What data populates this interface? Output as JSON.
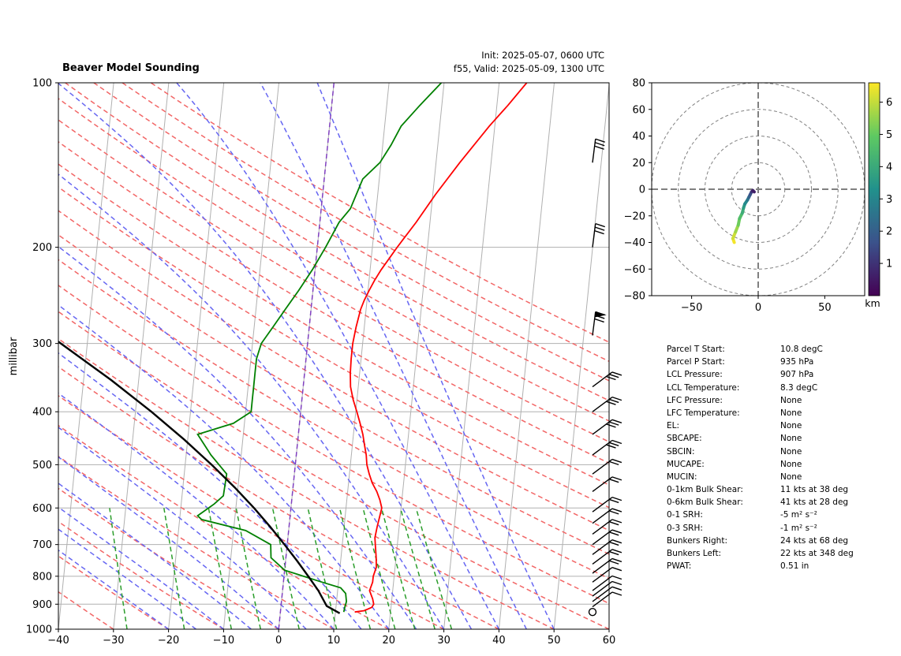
{
  "header": {
    "title": "Beaver Model Sounding",
    "init": "Init: 2025-05-07, 0600 UTC",
    "valid": "f55, Valid: 2025-05-09, 1300 UTC"
  },
  "chart_data": [
    {
      "type": "line",
      "subtype": "skew-T log-P diagram",
      "ylabel": "millibar",
      "xlim": [
        -40,
        60
      ],
      "ylim": [
        1000,
        100
      ],
      "xticks": [
        "−40",
        "−30",
        "−20",
        "−10",
        "0",
        "10",
        "20",
        "30",
        "40",
        "50",
        "60"
      ],
      "yticks": [
        "100",
        "200",
        "300",
        "400",
        "500",
        "600",
        "700",
        "800",
        "900",
        "1000"
      ],
      "yscale": "log",
      "grid": true,
      "series": [
        {
          "role": "temperature",
          "color": "#ff0000",
          "p": [
            930,
            925,
            912,
            900,
            880,
            850,
            820,
            800,
            770,
            740,
            700,
            680,
            650,
            620,
            600,
            580,
            560,
            540,
            520,
            500,
            480,
            460,
            440,
            420,
            400,
            380,
            360,
            340,
            320,
            300,
            280,
            260,
            250,
            240,
            230,
            220,
            200,
            180,
            160,
            140,
            120,
            110,
            100
          ],
          "t": [
            13.5,
            15.2,
            16.5,
            16.8,
            16.5,
            15.8,
            16.2,
            16.2,
            16.6,
            16.4,
            16.0,
            15.8,
            16.0,
            16.3,
            16.5,
            16.0,
            15.3,
            14.3,
            13.6,
            13.0,
            12.7,
            12.2,
            11.7,
            11.0,
            10.2,
            9.3,
            8.6,
            8.3,
            8.2,
            8.2,
            8.5,
            9.0,
            9.5,
            10.2,
            11.0,
            12.0,
            14.5,
            17.5,
            20.5,
            24.3,
            29.0,
            32.0,
            35.0
          ]
        },
        {
          "role": "dewpoint",
          "color": "#008000",
          "p": [
            930,
            912,
            890,
            860,
            840,
            820,
            780,
            740,
            700,
            660,
            630,
            620,
            590,
            570,
            520,
            480,
            440,
            420,
            400,
            380,
            360,
            340,
            320,
            300,
            280,
            260,
            240,
            220,
            200,
            180,
            170,
            150,
            140,
            130,
            120,
            110,
            100
          ],
          "td": [
            11.5,
            11.6,
            11.8,
            11.5,
            10.5,
            7.0,
            0.0,
            -2.7,
            -3.0,
            -7.8,
            -16.0,
            -16.8,
            -14.0,
            -12.5,
            -12.3,
            -15.5,
            -18.3,
            -12.0,
            -9.0,
            -9.0,
            -9.0,
            -9.0,
            -9.0,
            -8.4,
            -6.6,
            -4.7,
            -2.6,
            -0.5,
            1.5,
            3.5,
            5.3,
            7.0,
            9.8,
            11.5,
            13.0,
            16.0,
            19.5
          ]
        },
        {
          "role": "parcel profile",
          "color": "#000000",
          "p": [
            935,
            907,
            850,
            800,
            750,
            700,
            650,
            600,
            550,
            500,
            450,
            400,
            350,
            300,
            250,
            220,
            200,
            180,
            160,
            140,
            120,
            110,
            100
          ],
          "t": [
            10.8,
            8.3,
            6.5,
            4.4,
            2.1,
            -0.5,
            -3.4,
            -6.7,
            -10.6,
            -15.2,
            -20.6,
            -27.1,
            -35.0,
            -44.8,
            -56.5,
            -64.0,
            -69.5,
            -75.5,
            -82.0,
            -89.3,
            -97.5,
            -102.0,
            -107.0
          ]
        }
      ],
      "barb_pressures": [
        930,
        910,
        890,
        870,
        850,
        820,
        790,
        760,
        730,
        700,
        670,
        640,
        610,
        560,
        520,
        480,
        440,
        400,
        360,
        290,
        200,
        140
      ],
      "barb_labels": [
        "calm"
      ]
    },
    {
      "type": "line",
      "subtype": "hodograph",
      "xlim": [
        -80,
        80
      ],
      "ylim": [
        -80,
        80
      ],
      "xticks": [
        "−50",
        "0",
        "50"
      ],
      "yticks": [
        "80",
        "60",
        "40",
        "20",
        "0",
        "−20",
        "−40",
        "−60",
        "−80"
      ],
      "rings": [
        20,
        40,
        60,
        80
      ],
      "u": [
        -18,
        -19,
        -17,
        -15,
        -14,
        -12,
        -11,
        -10,
        -8,
        -7,
        -6,
        -5,
        -4,
        -3
      ],
      "v": [
        -40,
        -37,
        -32,
        -27,
        -22,
        -18,
        -14,
        -11,
        -8,
        -6,
        -4,
        -2,
        -1,
        -2
      ],
      "height_km": [
        0.1,
        0.5,
        1,
        1.5,
        2,
        2.5,
        3,
        3.5,
        4,
        4.5,
        5,
        5.5,
        6,
        6.5
      ],
      "colorbar": {
        "label": "km",
        "ticks": [
          "1",
          "2",
          "3",
          "4",
          "5",
          "6"
        ],
        "range": [
          0,
          6.6
        ],
        "colormap": "viridis"
      }
    }
  ],
  "stats": [
    {
      "label": "Parcel T Start:",
      "value": "10.8 degC"
    },
    {
      "label": "Parcel P Start:",
      "value": "935 hPa"
    },
    {
      "label": "LCL Pressure:",
      "value": "907 hPa"
    },
    {
      "label": "LCL Temperature:",
      "value": "8.3 degC"
    },
    {
      "label": "LFC Pressure:",
      "value": "None"
    },
    {
      "label": "LFC Temperature:",
      "value": "None"
    },
    {
      "label": "EL:",
      "value": "None"
    },
    {
      "label": "SBCAPE:",
      "value": "None"
    },
    {
      "label": "SBCIN:",
      "value": "None"
    },
    {
      "label": "MUCAPE:",
      "value": "None"
    },
    {
      "label": "MUCIN:",
      "value": "None"
    },
    {
      "label": "0-1km Bulk Shear:",
      "value": "11 kts at 38 deg"
    },
    {
      "label": "0-6km Bulk Shear:",
      "value": "41 kts at 28 deg"
    },
    {
      "label": "0-1 SRH:",
      "value": "-5 m² s⁻²"
    },
    {
      "label": "0-3 SRH:",
      "value": "-1 m² s⁻²"
    },
    {
      "label": "Bunkers Right:",
      "value": "24 kts at 68 deg"
    },
    {
      "label": "Bunkers Left:",
      "value": "22 kts at 348 deg"
    },
    {
      "label": "PWAT:",
      "value": "0.51 in"
    }
  ],
  "colors": {
    "temperature": "#ff0000",
    "dewpoint": "#008000",
    "parcel": "#000000",
    "dry_adiabat": "#f26666",
    "moist_adiabat": "#6666f2",
    "mixing_ratio": "#2a9d2a",
    "isotherm_zero": "#8040c0"
  }
}
